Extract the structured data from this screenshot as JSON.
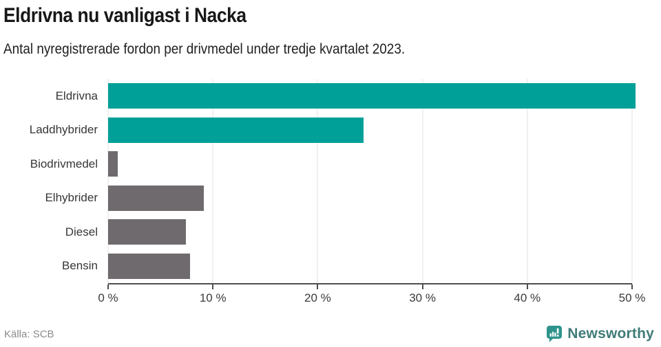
{
  "header": {
    "title": "Eldrivna nu vanligast i Nacka",
    "subtitle": "Antal nyregistrerade fordon per drivmedel under tredje kvartalet 2023."
  },
  "chart_data": {
    "type": "bar",
    "orientation": "horizontal",
    "title": "Eldrivna nu vanligast i Nacka",
    "subtitle": "Antal nyregistrerade fordon per drivmedel under tredje kvartalet 2023.",
    "categories": [
      "Eldrivna",
      "Laddhybrider",
      "Biodrivmedel",
      "Elhybrider",
      "Diesel",
      "Bensin"
    ],
    "values": [
      50.3,
      24.4,
      0.9,
      9.1,
      7.4,
      7.8
    ],
    "unit": "%",
    "xlim": [
      0,
      50
    ],
    "x_tick_values": [
      0,
      10,
      20,
      30,
      40,
      50
    ],
    "x_ticks": [
      "0 %",
      "10 %",
      "20 %",
      "30 %",
      "40 %",
      "50 %"
    ],
    "grid": true,
    "legend": "none",
    "bar_colors": [
      "#00A098",
      "#00A098",
      "#6E6A6E",
      "#6E6A6E",
      "#6E6A6E",
      "#6E6A6E"
    ],
    "highlight_color": "#00A098",
    "default_color": "#6E6A6E",
    "gridline_color": "#e1e1e1",
    "axis_color": "#4d4d4d"
  },
  "footer": {
    "source": "Källa: SCB",
    "brand": "Newsworthy",
    "brand_color": "#3f7b78",
    "icon_color": "#2f938d"
  }
}
